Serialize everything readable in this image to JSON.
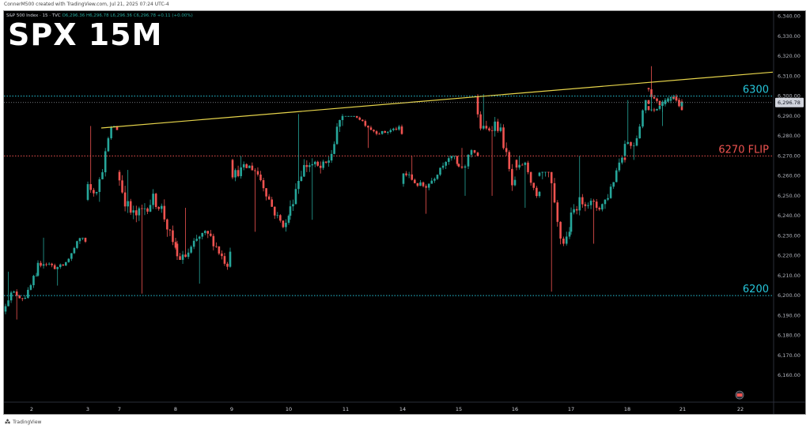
{
  "credit": "ConnerM500 created with TradingView.com, Jul 21, 2025 07:24 UTC-4",
  "legend": {
    "symbol": "S&P 500 Index · 15 · TVC",
    "ohlc": "O6,296.36 H6,296.78 L6,296.36 C6,296.78 +0.11 (+0.00%)"
  },
  "title": "SPX 15M",
  "footer": "TradingView",
  "colors": {
    "background": "#000000",
    "up": "#26a69a",
    "down": "#ef5350",
    "level_blue": "#26c6da",
    "level_red": "#ef5350",
    "trendline": "#e6d44b",
    "price_tag": "#d1d4dc"
  },
  "chart_data": {
    "type": "candlestick",
    "title": "SPX 15M",
    "symbol": "S&P 500 Index",
    "timeframe": "15",
    "y_axis": {
      "ylim": [
        6147,
        6343
      ],
      "ticks": [
        6160,
        6170,
        6180,
        6190,
        6200,
        6210,
        6220,
        6230,
        6240,
        6250,
        6260,
        6270,
        6280,
        6290,
        6300,
        6310,
        6320,
        6330,
        6340
      ],
      "tick_labels": [
        "6,160.00",
        "6,170.00",
        "6,180.00",
        "6,190.00",
        "6,200.00",
        "6,210.00",
        "6,220.00",
        "6,230.00",
        "6,240.00",
        "6,250.00",
        "6,260.00",
        "6,270.00",
        "6,280.00",
        "6,290.00",
        "6,300.00",
        "6,310.00",
        "6,320.00",
        "6,330.00",
        "6,340.00"
      ]
    },
    "x_axis": {
      "tick_labels": [
        "2",
        "3",
        "7",
        "8",
        "9",
        "10",
        "11",
        "14",
        "15",
        "16",
        "17",
        "18",
        "21",
        "22"
      ]
    },
    "current_price": {
      "value": 6296.78,
      "label": "6,296.78"
    },
    "levels": [
      {
        "name": "6300",
        "value": 6300,
        "color": "#26c6da"
      },
      {
        "name": "6270 FLIP",
        "value": 6270,
        "color": "#ef5350"
      },
      {
        "name": "6200",
        "value": 6200,
        "color": "#26c6da"
      }
    ],
    "trendline": {
      "from": {
        "bar": 5,
        "value": 6284
      },
      "to": {
        "bar": "right-edge",
        "value": 6312
      }
    },
    "segments": [
      {
        "day": "2",
        "start": 6192,
        "end": 6210,
        "min": 6188,
        "max": 6212
      },
      {
        "day": "2b",
        "start": 6210,
        "end": 6227,
        "min": 6205,
        "max": 6229
      },
      {
        "day": "3",
        "start": 6248,
        "end": 6283,
        "min": 6247,
        "max": 6285
      },
      {
        "day": "7",
        "start": 6262,
        "end": 6224,
        "min": 6201,
        "max": 6263
      },
      {
        "day": "8",
        "start": 6226,
        "end": 6222,
        "min": 6206,
        "max": 6244
      },
      {
        "day": "9",
        "start": 6268,
        "end": 6240,
        "min": 6232,
        "max": 6270
      },
      {
        "day": "10",
        "start": 6240,
        "end": 6290,
        "min": 6238,
        "max": 6291
      },
      {
        "day": "11",
        "start": 6290,
        "end": 6281,
        "min": 6274,
        "max": 6290
      },
      {
        "day": "14",
        "start": 6256,
        "end": 6266,
        "min": 6241,
        "max": 6270
      },
      {
        "day": "14b",
        "start": 6266,
        "end": 6270,
        "min": 6250,
        "max": 6274
      },
      {
        "day": "15",
        "start": 6300,
        "end": 6258,
        "min": 6250,
        "max": 6301
      },
      {
        "day": "15b",
        "start": 6268,
        "end": 6252,
        "min": 6244,
        "max": 6270
      },
      {
        "day": "16",
        "start": 6260,
        "end": 6232,
        "min": 6202,
        "max": 6262
      },
      {
        "day": "16b",
        "start": 6232,
        "end": 6268,
        "min": 6226,
        "max": 6270
      },
      {
        "day": "17",
        "start": 6270,
        "end": 6296,
        "min": 6268,
        "max": 6298
      },
      {
        "day": "18",
        "start": 6304,
        "end": 6293,
        "min": 6292,
        "max": 6315
      },
      {
        "day": "18b",
        "start": 6295,
        "end": 6296.78,
        "min": 6285,
        "max": 6301
      }
    ]
  }
}
